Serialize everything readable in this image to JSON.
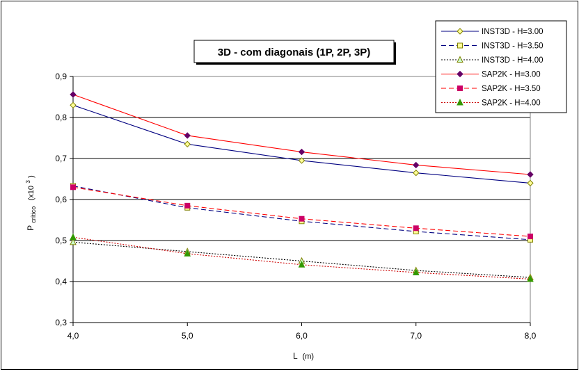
{
  "chart_data": {
    "type": "line",
    "title": "3D - com diagonais (1P, 2P, 3P)",
    "xlabel": "L",
    "xlabel_unit": "(m)",
    "ylabel_main": "P",
    "ylabel_sub": "crítico",
    "ylabel_unit": "(x10",
    "ylabel_exp": "3",
    "ylabel_close": ")",
    "x": [
      4.0,
      5.0,
      6.0,
      7.0,
      8.0
    ],
    "x_tick_labels": [
      "4,0",
      "5,0",
      "6,0",
      "7,0",
      "8,0"
    ],
    "xlim": [
      4.0,
      8.0
    ],
    "ylim": [
      0.3,
      0.9
    ],
    "y_ticks": [
      0.3,
      0.4,
      0.5,
      0.6,
      0.7,
      0.8,
      0.9
    ],
    "y_tick_labels": [
      "0,3",
      "0,4",
      "0,5",
      "0,6",
      "0,7",
      "0,8",
      "0,9"
    ],
    "grid": "horizontal",
    "legend_position": "top-right",
    "series": [
      {
        "name": "INST3D - H=3.00",
        "values": [
          0.83,
          0.735,
          0.695,
          0.665,
          0.64
        ],
        "color": "#000080",
        "marker_fill": "#FFFF99",
        "marker": "diamond",
        "dash": "solid"
      },
      {
        "name": "INST3D - H=3.50",
        "values": [
          0.633,
          0.58,
          0.547,
          0.522,
          0.502
        ],
        "color": "#000080",
        "marker_fill": "#FFFF99",
        "marker": "square",
        "dash": "dashed"
      },
      {
        "name": "INST3D - H=4.00",
        "values": [
          0.496,
          0.473,
          0.45,
          0.427,
          0.41
        ],
        "color": "#000000",
        "marker_fill": "#CCFFCC",
        "marker": "triangle",
        "dash": "dotted"
      },
      {
        "name": "SAP2K - H=3.00",
        "values": [
          0.856,
          0.756,
          0.716,
          0.684,
          0.661
        ],
        "color": "#FF0000",
        "marker_fill": "#660066",
        "marker": "diamond",
        "dash": "solid"
      },
      {
        "name": "SAP2K - H=3.50",
        "values": [
          0.63,
          0.585,
          0.553,
          0.53,
          0.51
        ],
        "color": "#FF0000",
        "marker_fill": "#CC0066",
        "marker": "square",
        "dash": "dashed"
      },
      {
        "name": "SAP2K - H=4.00",
        "values": [
          0.508,
          0.468,
          0.441,
          0.422,
          0.406
        ],
        "color": "#CC0000",
        "marker_fill": "#339900",
        "marker": "triangle",
        "dash": "dotted"
      }
    ]
  }
}
